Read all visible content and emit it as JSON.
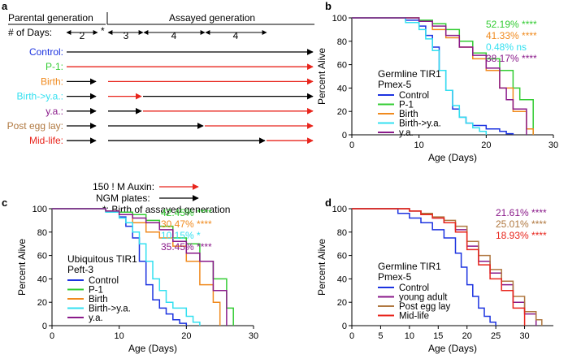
{
  "colors": {
    "control": "#1c33e0",
    "p1": "#33cc33",
    "birth": "#f08a1e",
    "birth_ya": "#33e0f0",
    "ya": "#8a1a8a",
    "post_egg": "#b07840",
    "mid_life": "#e8251c",
    "auxin_arrow": "#e8251c",
    "ngm_arrow": "#000000"
  },
  "panel_a": {
    "letter": "a",
    "parental_generation": "Parental generation",
    "assayed_generation": "Assayed generation",
    "days_label": "# of Days:",
    "day_counts": [
      "2",
      "3",
      "4",
      "4"
    ],
    "star": "*",
    "rows": [
      {
        "label": "Control:",
        "color_key": "control"
      },
      {
        "label": "P-1:",
        "color_key": "p1"
      },
      {
        "label": "Birth:",
        "color_key": "birth"
      },
      {
        "label": "Birth->y.a.:",
        "color_key": "birth_ya"
      },
      {
        "label": "y.a.:",
        "color_key": "ya"
      },
      {
        "label": "Post egg lay:",
        "color_key": "post_egg"
      },
      {
        "label": "Mid-life:",
        "color_key": "mid_life"
      }
    ],
    "legend_auxin": "150 ! M Auxin:",
    "legend_ngm": "NGM plates:",
    "legend_star": "*:  Birth of assayed generation"
  },
  "chart_data": [
    {
      "panel": "b",
      "type": "line",
      "step": true,
      "title": "",
      "xlabel": "Age (Days)",
      "ylabel": "Percent Alive",
      "xlim": [
        0,
        30
      ],
      "ylim": [
        0,
        100
      ],
      "xticks": [
        0,
        10,
        20,
        30
      ],
      "yticks": [
        0,
        20,
        40,
        60,
        80,
        100
      ],
      "legend_title": [
        "Germline TIR1",
        "Pmex-5"
      ],
      "series": [
        {
          "name": "Control",
          "color_key": "control",
          "x": [
            0,
            8,
            10,
            11,
            12,
            13,
            14,
            15,
            16,
            17,
            18,
            20,
            22,
            23,
            24
          ],
          "y": [
            100,
            98,
            93,
            85,
            75,
            55,
            38,
            22,
            15,
            10,
            8,
            5,
            3,
            1,
            0
          ]
        },
        {
          "name": "P-1",
          "color_key": "p1",
          "x": [
            0,
            10,
            12,
            14,
            16,
            18,
            20,
            22,
            24,
            25,
            27
          ],
          "y": [
            100,
            98,
            95,
            90,
            80,
            70,
            65,
            55,
            40,
            30,
            0
          ]
        },
        {
          "name": "Birth",
          "color_key": "birth",
          "x": [
            0,
            10,
            12,
            14,
            16,
            18,
            20,
            22,
            24,
            26,
            27
          ],
          "y": [
            100,
            97,
            90,
            83,
            75,
            65,
            55,
            40,
            20,
            5,
            0
          ]
        },
        {
          "name": "Birth->y.a.",
          "color_key": "birth_ya",
          "x": [
            0,
            8,
            10,
            11,
            12,
            13,
            14,
            15,
            16,
            17,
            18,
            19,
            20
          ],
          "y": [
            100,
            96,
            90,
            82,
            72,
            55,
            38,
            25,
            15,
            10,
            6,
            3,
            0
          ]
        },
        {
          "name": "y.a.",
          "color_key": "ya",
          "x": [
            0,
            10,
            12,
            14,
            16,
            18,
            20,
            22,
            23,
            24,
            26
          ],
          "y": [
            100,
            97,
            93,
            85,
            75,
            68,
            57,
            40,
            30,
            22,
            0
          ]
        }
      ],
      "annotations": [
        {
          "text": "52.19%",
          "stars": "****",
          "color_key": "p1"
        },
        {
          "text": "41.33%",
          "stars": "****",
          "color_key": "birth"
        },
        {
          "text": "0.48%",
          "stars": "ns",
          "color_key": "birth_ya"
        },
        {
          "text": "38.17%",
          "stars": "****",
          "color_key": "ya"
        }
      ]
    },
    {
      "panel": "c",
      "type": "line",
      "step": true,
      "title": "",
      "xlabel": "Age (Days)",
      "ylabel": "Percent Alive",
      "xlim": [
        0,
        30
      ],
      "ylim": [
        0,
        100
      ],
      "xticks": [
        0,
        10,
        20,
        30
      ],
      "yticks": [
        0,
        20,
        40,
        60,
        80,
        100
      ],
      "legend_title": [
        "Ubiquitous TIR1",
        "Peft-3"
      ],
      "series": [
        {
          "name": "Control",
          "color_key": "control",
          "x": [
            0,
            8,
            10,
            11,
            12,
            13,
            14,
            15,
            16,
            17,
            18,
            19,
            20
          ],
          "y": [
            100,
            98,
            93,
            85,
            75,
            55,
            35,
            22,
            15,
            10,
            5,
            2,
            0
          ]
        },
        {
          "name": "P-1",
          "color_key": "p1",
          "x": [
            0,
            8,
            10,
            12,
            14,
            16,
            18,
            20,
            22,
            24,
            26,
            27
          ],
          "y": [
            100,
            98,
            97,
            95,
            90,
            85,
            75,
            70,
            55,
            40,
            15,
            0
          ]
        },
        {
          "name": "Birth",
          "color_key": "birth",
          "x": [
            0,
            8,
            10,
            12,
            14,
            16,
            18,
            20,
            22,
            24,
            25
          ],
          "y": [
            100,
            98,
            95,
            88,
            80,
            75,
            68,
            55,
            35,
            20,
            0
          ]
        },
        {
          "name": "Birth->y.a.",
          "color_key": "birth_ya",
          "x": [
            0,
            8,
            10,
            11,
            12,
            13,
            14,
            15,
            16,
            17,
            18,
            20,
            21,
            22
          ],
          "y": [
            100,
            97,
            92,
            88,
            80,
            70,
            55,
            40,
            30,
            20,
            15,
            8,
            3,
            0
          ]
        },
        {
          "name": "y.a.",
          "color_key": "ya",
          "x": [
            0,
            8,
            10,
            12,
            14,
            16,
            18,
            20,
            22,
            24,
            26
          ],
          "y": [
            100,
            98,
            95,
            92,
            88,
            82,
            72,
            62,
            55,
            30,
            0
          ]
        }
      ],
      "annotations": [
        {
          "text": "42.45%",
          "stars": "****",
          "color_key": "p1"
        },
        {
          "text": "30.47%",
          "stars": "****",
          "color_key": "birth"
        },
        {
          "text": "10.15%",
          "stars": "*",
          "color_key": "birth_ya"
        },
        {
          "text": "35.45%",
          "stars": "****",
          "color_key": "ya"
        }
      ]
    },
    {
      "panel": "d",
      "type": "line",
      "step": true,
      "title": "",
      "xlabel": "Age (Days)",
      "ylabel": "Percent Alive",
      "xlim": [
        0,
        35
      ],
      "ylim": [
        0,
        100
      ],
      "xticks": [
        0,
        5,
        10,
        15,
        20,
        25,
        30
      ],
      "yticks": [
        0,
        20,
        40,
        60,
        80,
        100
      ],
      "legend_title": [
        "Germline TIR1",
        "Pmex-5"
      ],
      "series": [
        {
          "name": "Control",
          "color_key": "control",
          "x": [
            0,
            8,
            10,
            12,
            14,
            16,
            18,
            19,
            20,
            21,
            22,
            23,
            24,
            25
          ],
          "y": [
            100,
            96,
            92,
            88,
            82,
            75,
            62,
            50,
            35,
            25,
            15,
            8,
            3,
            0
          ]
        },
        {
          "name": "young adult",
          "color_key": "ya",
          "x": [
            0,
            10,
            12,
            14,
            16,
            18,
            20,
            22,
            24,
            26,
            28,
            30,
            32
          ],
          "y": [
            100,
            98,
            95,
            92,
            88,
            82,
            68,
            55,
            45,
            35,
            20,
            10,
            0
          ]
        },
        {
          "name": "Post egg lay",
          "color_key": "post_egg",
          "x": [
            0,
            10,
            12,
            14,
            16,
            18,
            20,
            22,
            24,
            26,
            28,
            30,
            32,
            33
          ],
          "y": [
            100,
            98,
            96,
            93,
            90,
            85,
            72,
            60,
            48,
            38,
            25,
            12,
            5,
            0
          ]
        },
        {
          "name": "Mid-life",
          "color_key": "mid_life",
          "x": [
            0,
            10,
            12,
            14,
            16,
            18,
            20,
            22,
            24,
            26,
            28,
            30
          ],
          "y": [
            100,
            98,
            95,
            92,
            88,
            80,
            65,
            52,
            40,
            30,
            15,
            0
          ]
        }
      ],
      "annotations": [
        {
          "text": "21.61%",
          "stars": "****",
          "color_key": "ya"
        },
        {
          "text": "25.01%",
          "stars": "****",
          "color_key": "post_egg"
        },
        {
          "text": "18.93%",
          "stars": "****",
          "color_key": "mid_life"
        }
      ]
    }
  ]
}
